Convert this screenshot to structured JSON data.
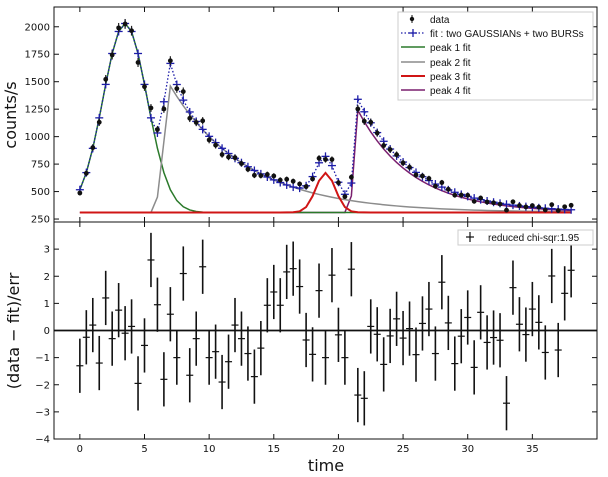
{
  "chart_data": [
    {
      "type": "scatter",
      "panel": "top",
      "xlabel": "",
      "ylabel": "counts/s",
      "xlim": [
        -2,
        40
      ],
      "ylim": [
        223,
        2180
      ],
      "yticks": [
        250,
        500,
        750,
        1000,
        1250,
        1500,
        1750,
        2000
      ],
      "xticks": [
        0,
        5,
        10,
        15,
        20,
        25,
        30,
        35
      ],
      "legend_position": "top-right",
      "legend": {
        "data": "data",
        "fit": "fit : two GAUSSIANs + two BURSs",
        "peak1": "peak 1 fit",
        "peak2": "peak 2 fit",
        "peak3": "peak 3 fit",
        "peak4": "peak 4 fit"
      },
      "colors": {
        "data": "#111111",
        "fit": "#1c1ca8",
        "peak1": "#2b7a2b",
        "peak2": "#8c8c8c",
        "peak3": "#d01515",
        "peak4": "#7a1f6e"
      },
      "x_start": 0,
      "x_step": 0.5,
      "counts": [
        487,
        666,
        900,
        1131,
        1522,
        1744,
        1990,
        2026,
        1964,
        1675,
        1455,
        1261,
        1065,
        1252,
        1691,
        1437,
        1410,
        1167,
        1129,
        1144,
        970,
        922,
        837,
        814,
        809,
        755,
        703,
        648,
        645,
        656,
        642,
        605,
        612,
        594,
        569,
        545,
        615,
        803,
        792,
        792,
        581,
        454,
        631,
        1252,
        1140,
        1131,
        1033,
        919,
        882,
        836,
        761,
        721,
        651,
        642,
        619,
        549,
        582,
        521,
        467,
        468,
        466,
        411,
        441,
        405,
        398,
        386,
        331,
        407,
        373,
        360,
        372,
        358,
        333,
        381,
        327,
        362,
        375
      ],
      "baseline": 310,
      "peaks": [
        {
          "key": "peak1",
          "kind": "gaussian",
          "amplitude": 1720,
          "center": 3.5,
          "sigma": 1.7
        },
        {
          "key": "peak2",
          "kind": "burst",
          "rise": [
            [
              5.5,
              0
            ],
            [
              6,
              140
            ],
            [
              6.5,
              645
            ],
            [
              7,
              1150
            ]
          ],
          "decay_tau": 5.9
        },
        {
          "key": "peak3",
          "kind": "gaussian",
          "amplitude": 360,
          "center": 19,
          "sigma": 0.75
        },
        {
          "key": "peak4",
          "kind": "burst",
          "rise": [
            [
              20.5,
              0
            ],
            [
              21,
              150
            ],
            [
              21.5,
              930
            ]
          ],
          "decay_tau": 4.2
        }
      ]
    },
    {
      "type": "scatter",
      "panel": "bottom",
      "xlabel": "time",
      "ylabel": "(data − fit)/err",
      "xlim": [
        -2,
        40
      ],
      "ylim": [
        -4,
        4
      ],
      "yticks": [
        -4,
        -3,
        -2,
        -1,
        0,
        1,
        2,
        3
      ],
      "xticks": [
        0,
        5,
        10,
        15,
        20,
        25,
        30,
        35
      ],
      "legend_position": "top-right",
      "legend": "reduced chi-sqr:1.95",
      "x_start": 0,
      "x_step": 0.5,
      "residuals": [
        -1.3,
        -0.25,
        0.2,
        -1.2,
        1.2,
        -0.3,
        0.75,
        -0.1,
        0.15,
        -1.95,
        -0.55,
        2.6,
        0.95,
        -1.8,
        0.6,
        -1.0,
        2.1,
        -1.65,
        -0.3,
        2.35,
        -1.0,
        -0.78,
        -1.9,
        -1.15,
        0.2,
        -0.3,
        -0.85,
        -1.7,
        -0.65,
        0.93,
        1.42,
        0.93,
        2.16,
        2.28,
        1.62,
        -0.35,
        -0.88,
        1.47,
        -1.0,
        2.04,
        -0.16,
        -1.0,
        2.26,
        -2.38,
        -2.5,
        0.15,
        -0.14,
        -1.25,
        -0.2,
        0.43,
        -0.28,
        0.07,
        -0.89,
        0.26,
        0.79,
        -0.85,
        1.78,
        0.28,
        -1.22,
        -0.21,
        0.48,
        -1.36,
        0.67,
        -0.44,
        -0.26,
        -0.36,
        -2.68,
        1.58,
        0.23,
        -0.15,
        0.79,
        0.3,
        -0.81,
        2.01,
        -0.72,
        1.37,
        2.22
      ],
      "error": 1
    }
  ]
}
